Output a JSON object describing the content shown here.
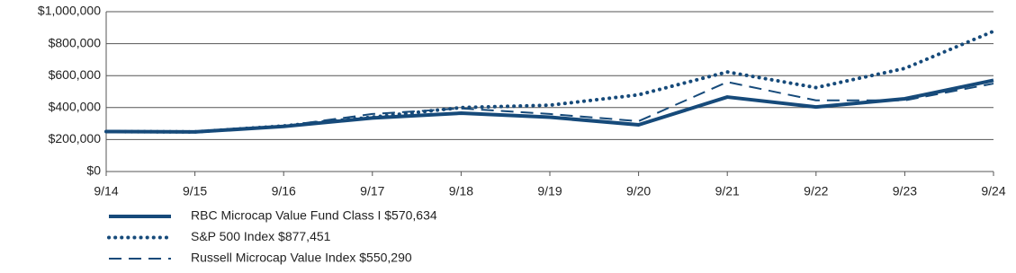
{
  "chart_data": {
    "type": "line",
    "categories": [
      "9/14",
      "9/15",
      "9/16",
      "9/17",
      "9/18",
      "9/19",
      "9/20",
      "9/21",
      "9/22",
      "9/23",
      "9/24"
    ],
    "series": [
      {
        "name": "RBC Microcap Value Fund Class I $570,634",
        "color": "#164a7a",
        "style": "solid",
        "values": [
          250000,
          248000,
          282000,
          335000,
          365000,
          340000,
          292000,
          466000,
          404000,
          455000,
          570634
        ]
      },
      {
        "name": "S&P 500 Index $877,451",
        "color": "#164a7a",
        "style": "dotted",
        "values": [
          250000,
          248000,
          285000,
          340000,
          400000,
          415000,
          480000,
          623000,
          525000,
          645000,
          877451
        ]
      },
      {
        "name": "Russell Microcap Value Index $550,290",
        "color": "#164a7a",
        "style": "dashed",
        "values": [
          250000,
          250000,
          285000,
          360000,
          395000,
          360000,
          315000,
          560000,
          445000,
          445000,
          550290
        ]
      }
    ],
    "ylim": [
      0,
      1000000
    ],
    "yticks": [
      {
        "value": 0,
        "label": "$0"
      },
      {
        "value": 200000,
        "label": "$200,000"
      },
      {
        "value": 400000,
        "label": "$400,000"
      },
      {
        "value": 600000,
        "label": "$600,000"
      },
      {
        "value": 800000,
        "label": "$800,000"
      },
      {
        "value": 1000000,
        "label": "$1,000,000"
      }
    ],
    "grid": true
  }
}
